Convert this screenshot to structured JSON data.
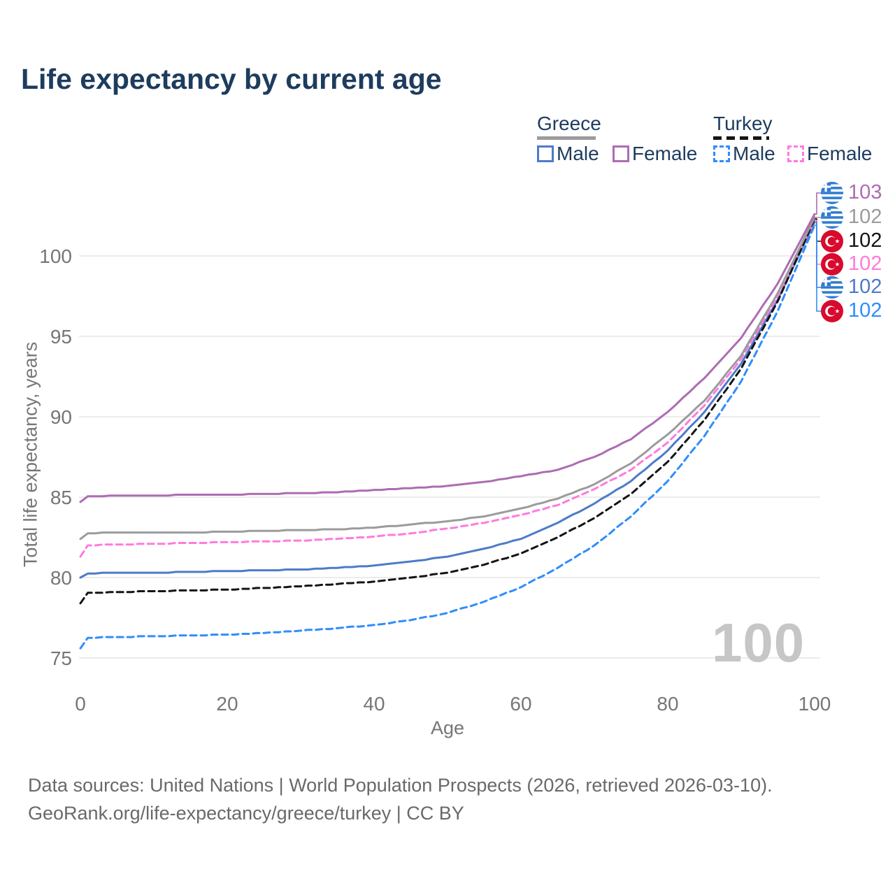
{
  "title": "Life expectancy by current age",
  "legend": {
    "greece": {
      "label": "Greece",
      "male": "Male",
      "female": "Female"
    },
    "turkey": {
      "label": "Turkey",
      "male": "Male",
      "female": "Female"
    }
  },
  "colors": {
    "greece_female": "#ad6cb3",
    "greece_all": "#9b9b9b",
    "turkey_all": "#141414",
    "turkey_female": "#ff7ade",
    "greece_male": "#4d7bc9",
    "turkey_male": "#2f8dfd",
    "gridline": "#ececec",
    "tick_text": "#767676",
    "title_text": "#1d3c5e",
    "watermark": "#c6c6c6"
  },
  "watermark": "100",
  "chart_data": {
    "type": "line",
    "title": "Life expectancy by current age",
    "xlabel": "Age",
    "ylabel": "Total life expectancy, years",
    "xlim": [
      0,
      100
    ],
    "ylim": [
      74.5,
      103.5
    ],
    "xticks": [
      0,
      20,
      40,
      60,
      80,
      100
    ],
    "yticks": [
      75,
      80,
      85,
      90,
      95,
      100
    ],
    "grid": "horizontal-only",
    "legend_position": "top-right",
    "x": [
      0,
      1,
      5,
      10,
      15,
      20,
      25,
      30,
      35,
      40,
      45,
      50,
      55,
      60,
      65,
      70,
      75,
      80,
      85,
      90,
      95,
      100
    ],
    "series": [
      {
        "name": "Greece Female",
        "country": "Greece",
        "sex": "Female",
        "color": "#ad6cb3",
        "dashed": false,
        "flag": "greece",
        "end_label": "103",
        "values": [
          84.7,
          85.05,
          85.1,
          85.1,
          85.15,
          85.15,
          85.2,
          85.25,
          85.3,
          85.45,
          85.55,
          85.7,
          85.95,
          86.3,
          86.7,
          87.5,
          88.6,
          90.3,
          92.4,
          94.9,
          98.3,
          102.6
        ]
      },
      {
        "name": "Greece Both sexes",
        "country": "Greece",
        "sex": "Both",
        "color": "#9b9b9b",
        "dashed": false,
        "flag": "greece",
        "end_label": "102",
        "values": [
          82.4,
          82.75,
          82.8,
          82.8,
          82.8,
          82.85,
          82.9,
          82.95,
          83.0,
          83.1,
          83.3,
          83.5,
          83.8,
          84.3,
          84.9,
          85.8,
          87.1,
          88.9,
          91.0,
          93.8,
          97.7,
          102.4
        ]
      },
      {
        "name": "Turkey Both sexes",
        "country": "Turkey",
        "sex": "Both",
        "color": "#141414",
        "dashed": true,
        "flag": "turkey",
        "end_label": "102",
        "values": [
          78.4,
          79.05,
          79.1,
          79.15,
          79.2,
          79.25,
          79.35,
          79.45,
          79.6,
          79.75,
          80.0,
          80.3,
          80.8,
          81.5,
          82.5,
          83.7,
          85.2,
          87.2,
          89.8,
          93.0,
          97.2,
          102.3
        ]
      },
      {
        "name": "Turkey Female",
        "country": "Turkey",
        "sex": "Female",
        "color": "#ff7ade",
        "dashed": true,
        "flag": "turkey",
        "end_label": "102",
        "values": [
          81.3,
          82.0,
          82.05,
          82.1,
          82.15,
          82.2,
          82.25,
          82.3,
          82.4,
          82.55,
          82.75,
          83.05,
          83.4,
          83.9,
          84.5,
          85.5,
          86.7,
          88.4,
          90.7,
          93.6,
          97.5,
          102.2
        ]
      },
      {
        "name": "Greece Male",
        "country": "Greece",
        "sex": "Male",
        "color": "#4d7bc9",
        "dashed": false,
        "flag": "greece",
        "end_label": "102",
        "values": [
          80.0,
          80.25,
          80.3,
          80.3,
          80.35,
          80.4,
          80.45,
          80.5,
          80.6,
          80.75,
          81.0,
          81.3,
          81.8,
          82.4,
          83.4,
          84.6,
          86.0,
          87.9,
          90.3,
          93.3,
          97.3,
          102.1
        ]
      },
      {
        "name": "Turkey Male",
        "country": "Turkey",
        "sex": "Male",
        "color": "#2f8dfd",
        "dashed": true,
        "flag": "turkey",
        "end_label": "102",
        "values": [
          75.6,
          76.25,
          76.3,
          76.35,
          76.4,
          76.45,
          76.55,
          76.7,
          76.85,
          77.05,
          77.35,
          77.8,
          78.5,
          79.4,
          80.6,
          82.0,
          83.8,
          86.0,
          88.8,
          92.2,
          96.6,
          101.9
        ]
      }
    ]
  },
  "footer": {
    "line1": "Data sources: United Nations | World Population Prospects (2026, retrieved 2026-03-10).",
    "line2": "GeoRank.org/life-expectancy/greece/turkey | CC BY"
  }
}
